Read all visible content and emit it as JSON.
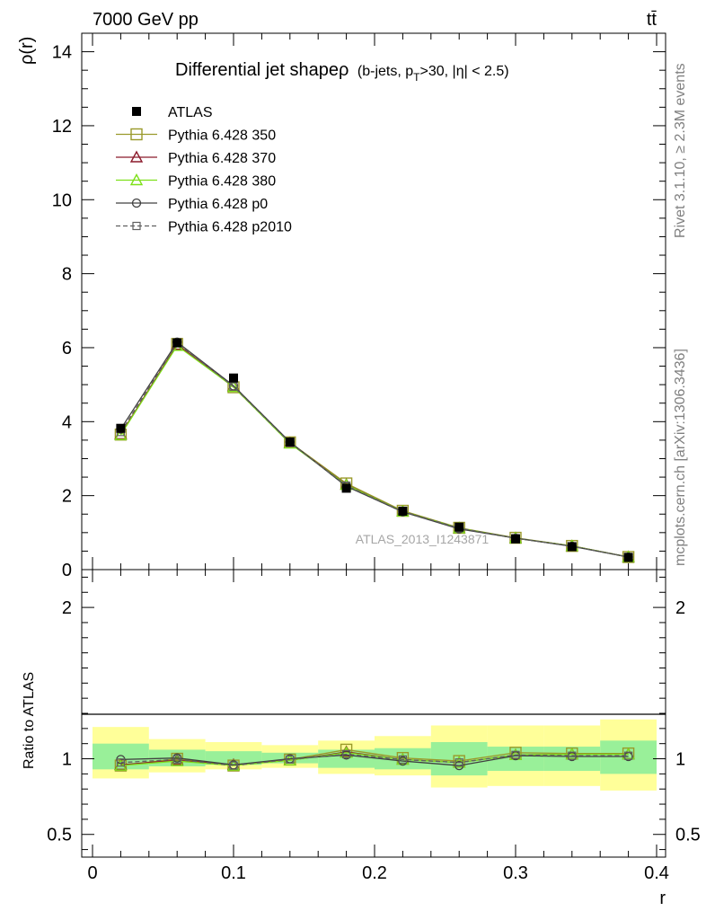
{
  "header": {
    "left": "7000 GeV pp",
    "right": "tt̄"
  },
  "side": {
    "rivet": "Rivet 3.1.10, ≥ 2.3M events",
    "mcplots": "mcplots.cern.ch [arXiv:1306.3436]"
  },
  "chart_data": [
    {
      "type": "line",
      "title": "Differential jet shapeρ",
      "title_suffix": "(b-jets, p",
      "title_sub": "T",
      "title_end": ">30, |η| < 2.5)",
      "xlabel": "",
      "ylabel": "ρ(r)",
      "xlim": [
        0,
        0.4
      ],
      "ylim": [
        0,
        14.5
      ],
      "yticks": [
        0,
        2,
        4,
        6,
        8,
        10,
        12,
        14
      ],
      "watermark": "ATLAS_2013_I1243871",
      "legend_position": "top-left",
      "x": [
        0.02,
        0.06,
        0.1,
        0.14,
        0.18,
        0.22,
        0.26,
        0.3,
        0.34,
        0.38
      ],
      "series": [
        {
          "name": "ATLAS",
          "color": "#000000",
          "marker": "filled-square",
          "values": [
            3.82,
            6.13,
            5.18,
            3.45,
            2.2,
            1.58,
            1.15,
            0.83,
            0.62,
            0.33
          ]
        },
        {
          "name": "Pythia 6.428 350",
          "color": "#9a9a2a",
          "marker": "open-square",
          "values": [
            3.65,
            6.1,
            4.93,
            3.44,
            2.33,
            1.59,
            1.13,
            0.86,
            0.64,
            0.34
          ]
        },
        {
          "name": "Pythia 6.428 370",
          "color": "#8b1a2b",
          "marker": "open-triangle",
          "values": [
            3.66,
            6.08,
            4.96,
            3.42,
            2.3,
            1.57,
            1.12,
            0.85,
            0.64,
            0.34
          ]
        },
        {
          "name": "Pythia 6.428 380",
          "color": "#7ee01a",
          "marker": "open-triangle",
          "values": [
            3.64,
            6.05,
            4.94,
            3.41,
            2.29,
            1.57,
            1.12,
            0.85,
            0.64,
            0.34
          ]
        },
        {
          "name": "Pythia 6.428 p0",
          "color": "#404040",
          "marker": "open-circle",
          "values": [
            3.8,
            6.15,
            4.97,
            3.45,
            2.25,
            1.56,
            1.1,
            0.85,
            0.63,
            0.34
          ]
        },
        {
          "name": "Pythia 6.428 p2010",
          "color": "#606060",
          "marker": "open-square-dashed",
          "values": [
            3.72,
            6.12,
            4.95,
            3.43,
            2.27,
            1.57,
            1.12,
            0.85,
            0.63,
            0.34
          ]
        }
      ]
    },
    {
      "type": "line",
      "xlabel": "r",
      "ylabel": "Ratio to ATLAS",
      "xlim": [
        0,
        0.4
      ],
      "ylim": [
        0.35,
        2.25
      ],
      "yticks": [
        0.5,
        1,
        2
      ],
      "xticks": [
        0,
        0.1,
        0.2,
        0.3,
        0.4
      ],
      "bins": [
        [
          0,
          0.04
        ],
        [
          0.04,
          0.08
        ],
        [
          0.08,
          0.12
        ],
        [
          0.12,
          0.16
        ],
        [
          0.16,
          0.2
        ],
        [
          0.2,
          0.24
        ],
        [
          0.24,
          0.28
        ],
        [
          0.28,
          0.32
        ],
        [
          0.32,
          0.36
        ],
        [
          0.36,
          0.4
        ]
      ],
      "band_stat": [
        [
          0.93,
          1.1
        ],
        [
          0.95,
          1.06
        ],
        [
          0.96,
          1.05
        ],
        [
          0.97,
          1.04
        ],
        [
          0.94,
          1.06
        ],
        [
          0.93,
          1.07
        ],
        [
          0.89,
          1.11
        ],
        [
          0.92,
          1.08
        ],
        [
          0.92,
          1.08
        ],
        [
          0.9,
          1.12
        ]
      ],
      "band_total": [
        [
          0.87,
          1.21
        ],
        [
          0.91,
          1.13
        ],
        [
          0.93,
          1.11
        ],
        [
          0.94,
          1.09
        ],
        [
          0.9,
          1.12
        ],
        [
          0.89,
          1.15
        ],
        [
          0.81,
          1.22
        ],
        [
          0.82,
          1.22
        ],
        [
          0.82,
          1.22
        ],
        [
          0.79,
          1.26
        ]
      ],
      "series": [
        {
          "name": "Pythia 6.428 350",
          "values": [
            0.955,
            1.0,
            0.955,
            0.995,
            1.06,
            1.005,
            0.985,
            1.04,
            1.035,
            1.035
          ]
        },
        {
          "name": "Pythia 6.428 370",
          "values": [
            0.96,
            0.99,
            0.96,
            0.99,
            1.045,
            0.995,
            0.975,
            1.025,
            1.03,
            1.03
          ]
        },
        {
          "name": "Pythia 6.428 380",
          "values": [
            0.955,
            0.985,
            0.955,
            0.99,
            1.04,
            0.995,
            0.975,
            1.025,
            1.03,
            1.03
          ]
        },
        {
          "name": "Pythia 6.428 p0",
          "values": [
            0.995,
            1.005,
            0.96,
            1.0,
            1.025,
            0.985,
            0.955,
            1.02,
            1.015,
            1.015
          ]
        },
        {
          "name": "Pythia 6.428 p2010",
          "values": [
            0.975,
            0.995,
            0.955,
            0.995,
            1.03,
            0.995,
            0.975,
            1.025,
            1.02,
            1.02
          ]
        }
      ]
    }
  ]
}
